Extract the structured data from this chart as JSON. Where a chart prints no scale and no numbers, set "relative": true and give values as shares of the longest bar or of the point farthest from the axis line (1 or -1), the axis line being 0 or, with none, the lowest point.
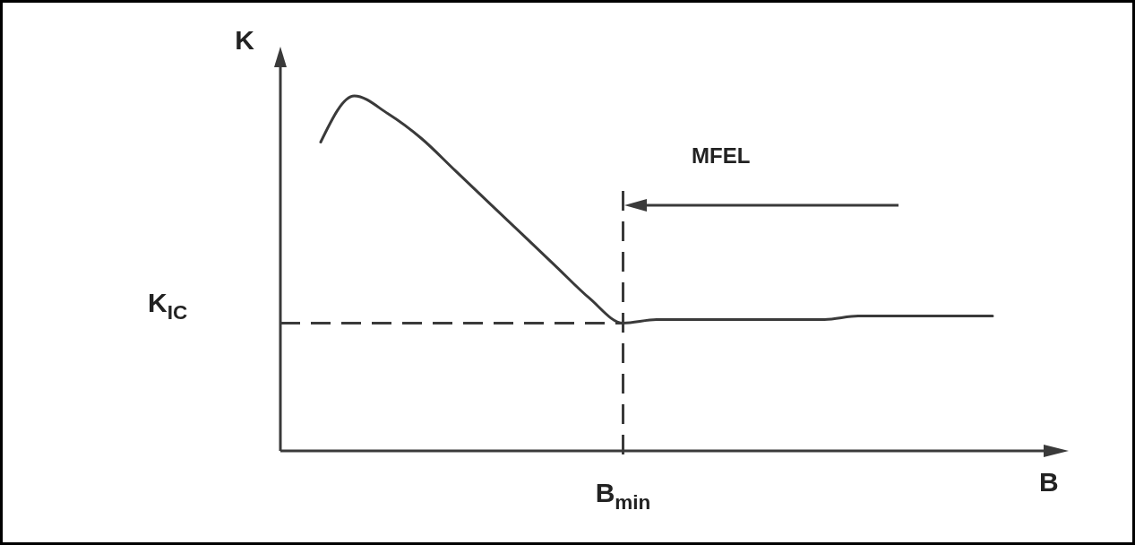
{
  "chart_data": {
    "type": "line",
    "relative": true,
    "xlabel": "B",
    "ylabel": "K",
    "color": "#3a3a3a",
    "line_style": "solid",
    "categories": [
      null,
      null,
      null,
      null,
      null,
      null,
      null,
      null,
      null,
      null,
      null,
      null,
      null,
      null,
      null,
      null,
      null,
      null,
      null,
      null,
      null
    ],
    "values": [
      0.87,
      1.0,
      0.95,
      0.88,
      0.79,
      0.7,
      0.61,
      0.52,
      0.43,
      0.36,
      0.37,
      0.37,
      0.37,
      0.37,
      0.37,
      0.37,
      0.38,
      0.38,
      0.38,
      0.38,
      0.38
    ],
    "ref_lines": [
      {
        "axis": "y",
        "value": 0.36,
        "label": "K$_{IC}$",
        "line_style": "dashed"
      }
    ],
    "annotations": [
      "MFEL",
      "B$_{min}$"
    ]
  }
}
